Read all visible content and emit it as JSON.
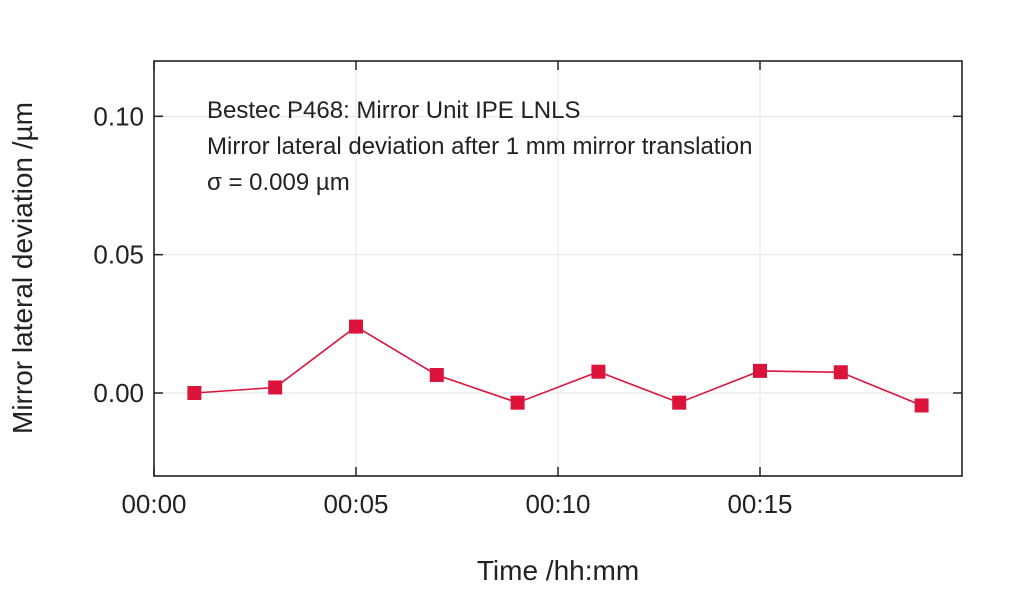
{
  "chart_data": {
    "type": "line",
    "title": "",
    "annotations": [
      "Bestec P468: Mirror Unit IPE LNLS",
      "Mirror lateral deviation after 1 mm mirror translation",
      "σ = 0.009 µm"
    ],
    "xlabel": "Time /hh:mm",
    "ylabel": "Mirror lateral deviation /µm",
    "xlim": [
      0,
      20
    ],
    "ylim": [
      -0.03,
      0.12
    ],
    "x_ticks": [
      {
        "value": 0,
        "label": "00:00"
      },
      {
        "value": 5,
        "label": "00:05"
      },
      {
        "value": 10,
        "label": "00:10"
      },
      {
        "value": 15,
        "label": "00:15"
      }
    ],
    "y_ticks": [
      {
        "value": 0.0,
        "label": "0.00"
      },
      {
        "value": 0.05,
        "label": "0.05"
      },
      {
        "value": 0.1,
        "label": "0.10"
      }
    ],
    "grid": true,
    "series": [
      {
        "color": "#dc143c",
        "marker": "square",
        "x": [
          1,
          3,
          5,
          7,
          9,
          11,
          13,
          15,
          17,
          19
        ],
        "y": [
          0.0,
          0.002,
          0.024,
          0.0065,
          -0.0035,
          0.0077,
          -0.0035,
          0.008,
          0.0075,
          -0.0045
        ]
      }
    ]
  }
}
